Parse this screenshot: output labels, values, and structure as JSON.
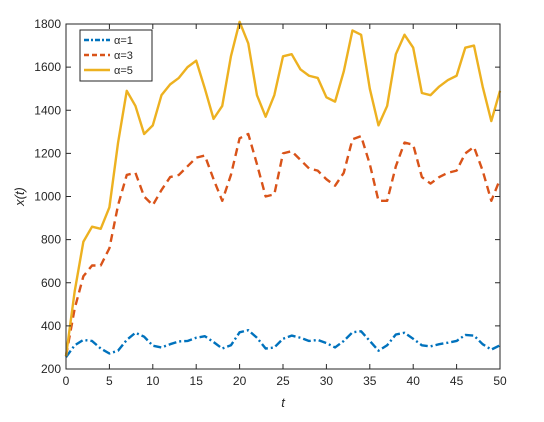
{
  "colors": {
    "axis": "#262626",
    "background": "#ffffff",
    "legend_border": "#262626"
  },
  "chart_data": {
    "type": "line",
    "title": "",
    "xlabel": "t",
    "ylabel": "x(t)",
    "xlim": [
      0,
      50
    ],
    "ylim": [
      200,
      1800
    ],
    "xticks": [
      0,
      5,
      10,
      15,
      20,
      25,
      30,
      35,
      40,
      45,
      50
    ],
    "yticks": [
      200,
      400,
      600,
      800,
      1000,
      1200,
      1400,
      1600,
      1800
    ],
    "grid": false,
    "legend_position": "top-left",
    "series": [
      {
        "name": "α=1",
        "color": "#0072BD",
        "dash": "dash-dot",
        "x": [
          0,
          1,
          2,
          3,
          4,
          5,
          6,
          7,
          8,
          9,
          10,
          11,
          12,
          13,
          14,
          15,
          16,
          17,
          18,
          19,
          20,
          21,
          22,
          23,
          24,
          25,
          26,
          27,
          28,
          29,
          30,
          31,
          32,
          33,
          34,
          35,
          36,
          37,
          38,
          39,
          40,
          41,
          42,
          43,
          44,
          45,
          46,
          47,
          48,
          49,
          50
        ],
        "y": [
          255,
          310,
          335,
          330,
          295,
          272,
          285,
          335,
          368,
          350,
          308,
          300,
          315,
          328,
          330,
          345,
          352,
          325,
          295,
          310,
          370,
          380,
          345,
          295,
          300,
          340,
          355,
          345,
          330,
          335,
          320,
          300,
          330,
          370,
          375,
          330,
          285,
          310,
          360,
          368,
          340,
          310,
          305,
          315,
          322,
          330,
          358,
          355,
          315,
          290,
          310
        ]
      },
      {
        "name": "α=3",
        "color": "#D95319",
        "dash": "dashed",
        "x": [
          0,
          1,
          2,
          3,
          4,
          5,
          6,
          7,
          8,
          9,
          10,
          11,
          12,
          13,
          14,
          15,
          16,
          17,
          18,
          19,
          20,
          21,
          22,
          23,
          24,
          25,
          26,
          27,
          28,
          29,
          30,
          31,
          32,
          33,
          34,
          35,
          36,
          37,
          38,
          39,
          40,
          41,
          42,
          43,
          44,
          45,
          46,
          47,
          48,
          49,
          50
        ],
        "y": [
          260,
          480,
          630,
          680,
          680,
          760,
          960,
          1100,
          1110,
          1000,
          960,
          1030,
          1090,
          1100,
          1140,
          1180,
          1190,
          1080,
          980,
          1100,
          1270,
          1290,
          1150,
          1000,
          1010,
          1200,
          1210,
          1170,
          1130,
          1120,
          1080,
          1050,
          1110,
          1265,
          1280,
          1150,
          980,
          980,
          1140,
          1250,
          1240,
          1090,
          1060,
          1090,
          1110,
          1120,
          1200,
          1230,
          1120,
          980,
          1080
        ]
      },
      {
        "name": "α=5",
        "color": "#EDB120",
        "dash": "solid",
        "x": [
          0,
          1,
          2,
          3,
          4,
          5,
          6,
          7,
          8,
          9,
          10,
          11,
          12,
          13,
          14,
          15,
          16,
          17,
          18,
          19,
          20,
          21,
          22,
          23,
          24,
          25,
          26,
          27,
          28,
          29,
          30,
          31,
          32,
          33,
          34,
          35,
          36,
          37,
          38,
          39,
          40,
          41,
          42,
          43,
          44,
          45,
          46,
          47,
          48,
          49,
          50
        ],
        "y": [
          260,
          560,
          790,
          860,
          850,
          950,
          1250,
          1490,
          1420,
          1290,
          1330,
          1470,
          1520,
          1550,
          1600,
          1630,
          1500,
          1360,
          1420,
          1650,
          1810,
          1710,
          1470,
          1370,
          1470,
          1650,
          1660,
          1590,
          1560,
          1550,
          1460,
          1440,
          1580,
          1770,
          1750,
          1500,
          1330,
          1420,
          1660,
          1750,
          1690,
          1480,
          1470,
          1510,
          1540,
          1560,
          1690,
          1700,
          1510,
          1350,
          1490
        ]
      }
    ]
  }
}
